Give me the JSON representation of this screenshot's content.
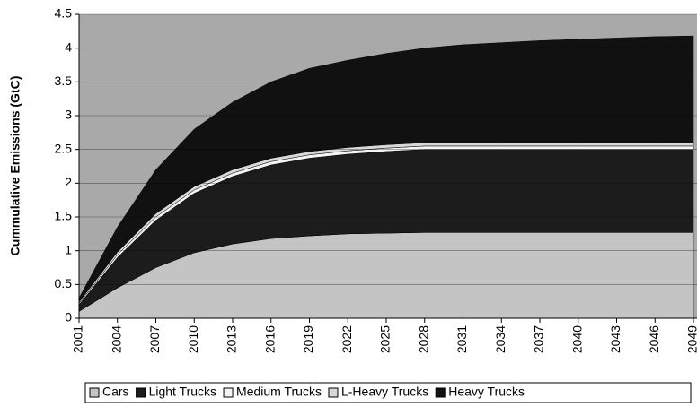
{
  "chart_data": {
    "type": "stacked-area",
    "y_label": "Cummulative Emissions (GtC)",
    "x": [
      2001,
      2004,
      2007,
      2010,
      2013,
      2016,
      2019,
      2022,
      2025,
      2028,
      2031,
      2034,
      2037,
      2040,
      2043,
      2046,
      2049
    ],
    "xlim": [
      2001,
      2049
    ],
    "xticks": [
      2001,
      2004,
      2007,
      2010,
      2013,
      2016,
      2019,
      2022,
      2025,
      2028,
      2031,
      2034,
      2037,
      2040,
      2043,
      2046,
      2049
    ],
    "ylim": [
      0,
      4.5
    ],
    "yticks": [
      0,
      0.5,
      1,
      1.5,
      2,
      2.5,
      3,
      3.5,
      4,
      4.5
    ],
    "grid": true,
    "legend": "bottom",
    "series": [
      {
        "name": "Cars",
        "color": "#c4c4c4",
        "values": [
          0.1,
          0.45,
          0.75,
          0.97,
          1.1,
          1.18,
          1.22,
          1.25,
          1.26,
          1.27,
          1.27,
          1.27,
          1.27,
          1.27,
          1.27,
          1.27,
          1.27
        ]
      },
      {
        "name": "Light Trucks",
        "color": "#1c1c1c",
        "values": [
          0.1,
          0.45,
          0.7,
          0.88,
          1.0,
          1.09,
          1.15,
          1.18,
          1.21,
          1.23,
          1.23,
          1.23,
          1.23,
          1.23,
          1.23,
          1.23,
          1.23
        ]
      },
      {
        "name": "Medium Trucks",
        "color": "#f4f4f4",
        "values": [
          0.02,
          0.04,
          0.05,
          0.05,
          0.05,
          0.05,
          0.05,
          0.05,
          0.05,
          0.05,
          0.05,
          0.05,
          0.05,
          0.05,
          0.05,
          0.05,
          0.05
        ]
      },
      {
        "name": "L-Heavy Trucks",
        "color": "#d8d8d8",
        "values": [
          0.02,
          0.04,
          0.05,
          0.05,
          0.05,
          0.05,
          0.05,
          0.05,
          0.05,
          0.05,
          0.05,
          0.05,
          0.05,
          0.05,
          0.05,
          0.05,
          0.05
        ]
      },
      {
        "name": "Heavy Trucks",
        "color": "#111111",
        "values": [
          0.06,
          0.37,
          0.65,
          0.85,
          1.0,
          1.13,
          1.23,
          1.29,
          1.35,
          1.4,
          1.45,
          1.48,
          1.51,
          1.53,
          1.55,
          1.57,
          1.58
        ]
      }
    ]
  }
}
